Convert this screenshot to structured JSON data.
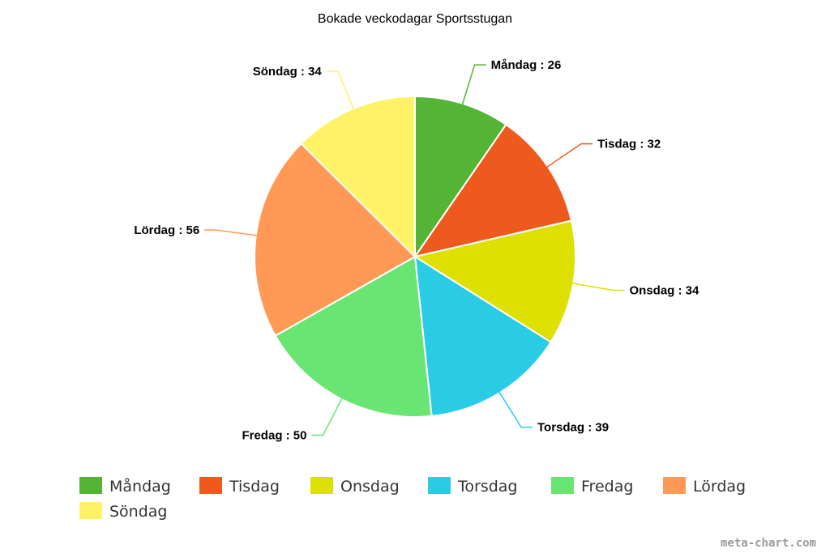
{
  "chart_data": {
    "type": "pie",
    "title": "Bokade veckodagar Sportsstugan",
    "categories": [
      "Måndag",
      "Tisdag",
      "Onsdag",
      "Torsdag",
      "Fredag",
      "Lördag",
      "Söndag"
    ],
    "values": [
      26,
      32,
      34,
      39,
      50,
      56,
      34
    ],
    "labels": [
      "Måndag : 26",
      "Tisdag : 32",
      "Onsdag : 34",
      "Torsdag : 39",
      "Fredag : 50",
      "Lördag : 56",
      "Söndag : 34"
    ],
    "colors": [
      "#54b435",
      "#ee5a1e",
      "#dde000",
      "#29cbe5",
      "#68e572",
      "#ff9955",
      "#fff266"
    ],
    "legend_position": "bottom",
    "credit": "meta-chart.com"
  }
}
